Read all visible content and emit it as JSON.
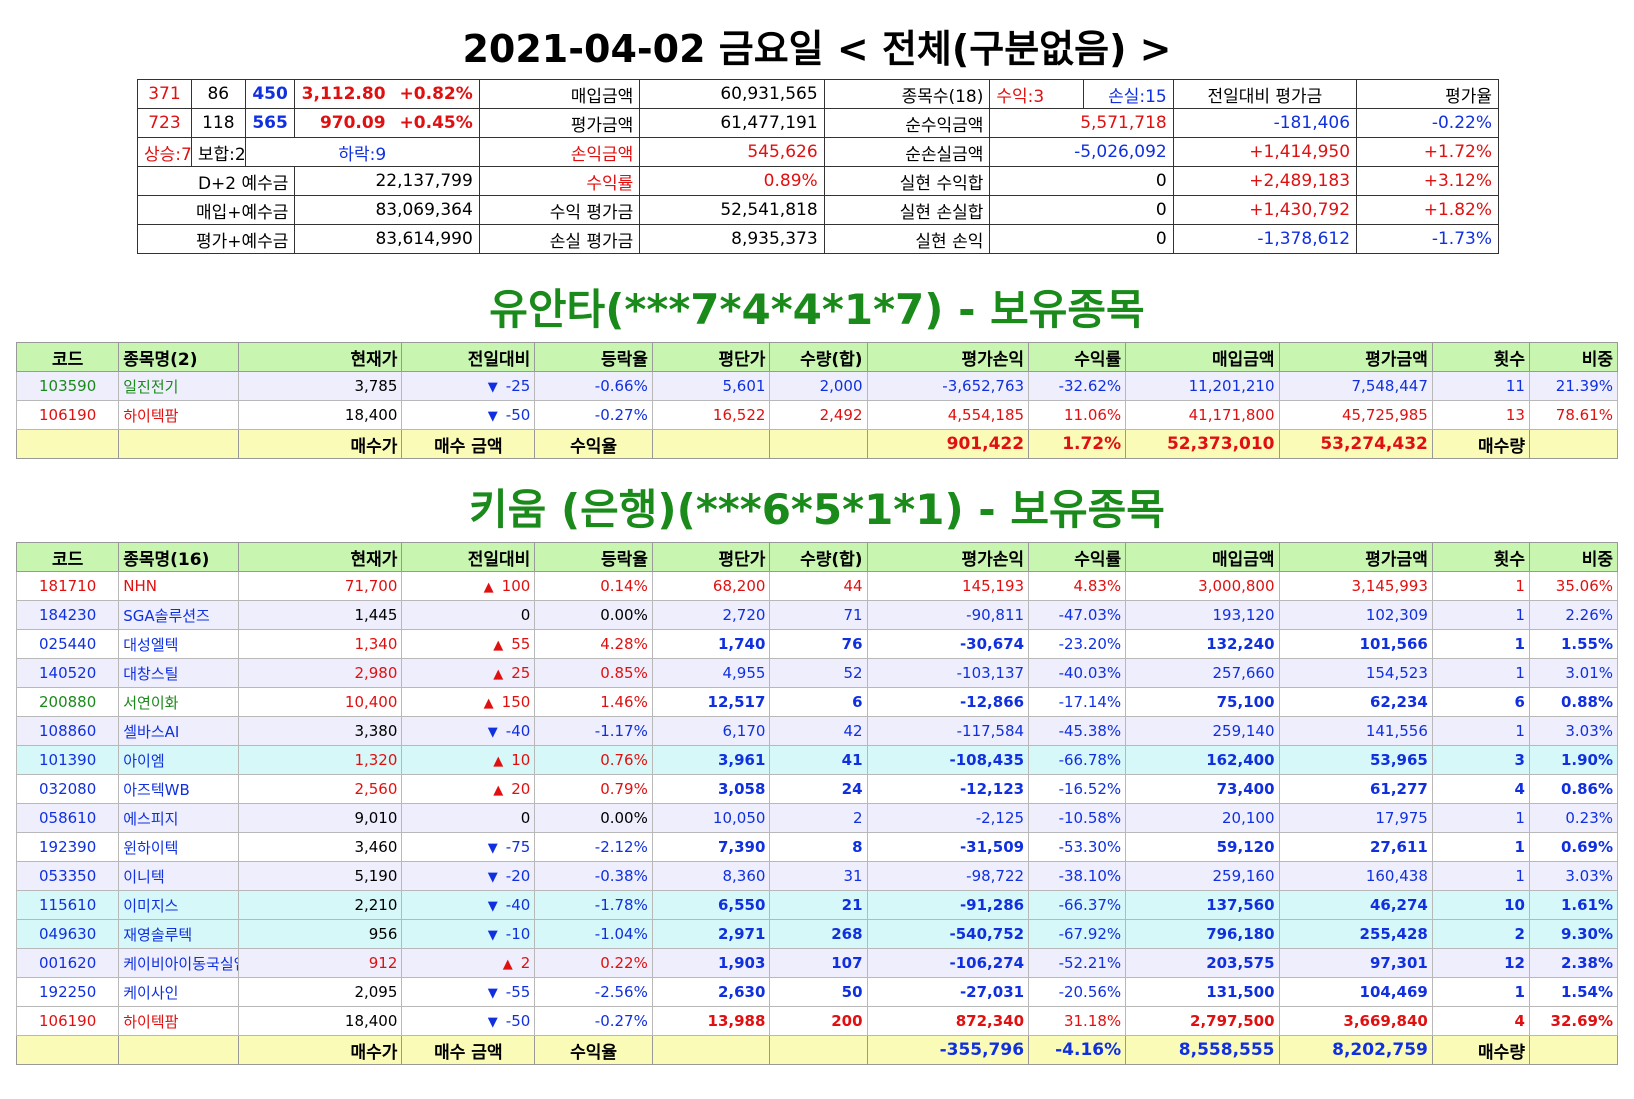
{
  "header": {
    "title": "2021-04-02 금요일 < 전체(구분없음) >"
  },
  "summary": {
    "rows": [
      {
        "a": "371",
        "b": "86",
        "c": "450",
        "idx": "3,112.80",
        "idxpct": "+0.82%",
        "l1": "매입금액",
        "v1": "60,931,565",
        "l2": "종목수(18)",
        "s1": "수익:3",
        "s2": "손실:15",
        "l3": "전일대비 평가금",
        "l4": "평가율"
      },
      {
        "a": "723",
        "b": "118",
        "c": "565",
        "idx": "970.09",
        "idxpct": "+0.45%",
        "l1": "평가금액",
        "v1": "61,477,191",
        "l2": "순수익금액",
        "s1": "5,571,718",
        "l3": "-181,406",
        "l4": "-0.22%"
      },
      {
        "a": "상승:7",
        "b": "보합:2",
        "c": "하락:9",
        "l1": "손익금액",
        "v1": "545,626",
        "l2": "순손실금액",
        "s1": "-5,026,092",
        "l3": "+1,414,950",
        "l4": "+1.72%"
      },
      {
        "k": "D+2 예수금",
        "kv": "22,137,799",
        "l1": "수익률",
        "v1": "0.89%",
        "l2": "실현 수익합",
        "s1": "0",
        "l3": "+2,489,183",
        "l4": "+3.12%"
      },
      {
        "k": "매입+예수금",
        "kv": "83,069,364",
        "l1": "수익 평가금",
        "v1": "52,541,818",
        "l2": "실현 손실합",
        "s1": "0",
        "l3": "+1,430,792",
        "l4": "+1.82%"
      },
      {
        "k": "평가+예수금",
        "kv": "83,614,990",
        "l1": "손실 평가금",
        "v1": "8,935,373",
        "l2": "실현 손익",
        "s1": "0",
        "l3": "-1,378,612",
        "l4": "-1.73%"
      }
    ]
  },
  "columns": [
    "코드",
    "종목명",
    "현재가",
    "전일대비",
    "등락율",
    "평단가",
    "수량(합)",
    "평가손익",
    "수익률",
    "매입금액",
    "평가금액",
    "횟수",
    "비중"
  ],
  "account1": {
    "title": "유안타(***7*4*4*1*7) - 보유종목",
    "name_header": "종목명(2)",
    "rows": [
      {
        "code": "103590",
        "name": "일진전기",
        "price": "3,785",
        "dir": "down",
        "chg": "-25",
        "rate": "-0.66%",
        "avg": "5,601",
        "qty": "2,000",
        "pl": "-3,652,763",
        "ret": "-32.62%",
        "buy": "11,201,210",
        "eval": "7,548,447",
        "cnt": "11",
        "weight": "21.39%",
        "color": "grn",
        "style": "even"
      },
      {
        "code": "106190",
        "name": "하이텍팜",
        "price": "18,400",
        "dir": "down",
        "chg": "-50",
        "rate": "-0.27%",
        "avg": "16,522",
        "qty": "2,492",
        "pl": "4,554,185",
        "ret": "11.06%",
        "buy": "41,171,800",
        "eval": "45,725,985",
        "cnt": "13",
        "weight": "78.61%",
        "color": "red",
        "style": "odd"
      }
    ],
    "footer": {
      "l1": "매수가",
      "l2": "매수 금액",
      "l3": "수익율",
      "pl": "901,422",
      "ret": "1.72%",
      "buy": "52,373,010",
      "eval": "53,274,432",
      "l4": "매수량"
    }
  },
  "account2": {
    "title": "키움 (은행)(***6*5*1*1) - 보유종목",
    "name_header": "종목명(16)",
    "rows": [
      {
        "code": "181710",
        "name": "NHN",
        "price": "71,700",
        "dir": "up",
        "chg": "100",
        "rate": "0.14%",
        "avg": "68,200",
        "qty": "44",
        "pl": "145,193",
        "ret": "4.83%",
        "buy": "3,000,800",
        "eval": "3,145,993",
        "cnt": "1",
        "weight": "35.06%",
        "color": "red",
        "style": "odd",
        "bold": false
      },
      {
        "code": "184230",
        "name": "SGA솔루션즈",
        "price": "1,445",
        "dir": "flat",
        "chg": "0",
        "rate": "0.00%",
        "avg": "2,720",
        "qty": "71",
        "pl": "-90,811",
        "ret": "-47.03%",
        "buy": "193,120",
        "eval": "102,309",
        "cnt": "1",
        "weight": "2.26%",
        "color": "blue",
        "style": "even",
        "bold": false
      },
      {
        "code": "025440",
        "name": "대성엘텍",
        "price": "1,340",
        "dir": "up",
        "chg": "55",
        "rate": "4.28%",
        "avg": "1,740",
        "qty": "76",
        "pl": "-30,674",
        "ret": "-23.20%",
        "buy": "132,240",
        "eval": "101,566",
        "cnt": "1",
        "weight": "1.55%",
        "color": "blue",
        "style": "odd",
        "bold": true
      },
      {
        "code": "140520",
        "name": "대창스틸",
        "price": "2,980",
        "dir": "up",
        "chg": "25",
        "rate": "0.85%",
        "avg": "4,955",
        "qty": "52",
        "pl": "-103,137",
        "ret": "-40.03%",
        "buy": "257,660",
        "eval": "154,523",
        "cnt": "1",
        "weight": "3.01%",
        "color": "blue",
        "style": "even",
        "bold": false
      },
      {
        "code": "200880",
        "name": "서연이화",
        "price": "10,400",
        "dir": "up",
        "chg": "150",
        "rate": "1.46%",
        "avg": "12,517",
        "qty": "6",
        "pl": "-12,866",
        "ret": "-17.14%",
        "buy": "75,100",
        "eval": "62,234",
        "cnt": "6",
        "weight": "0.88%",
        "color": "grn",
        "style": "odd",
        "bold": true
      },
      {
        "code": "108860",
        "name": "셀바스AI",
        "price": "3,380",
        "dir": "down",
        "chg": "-40",
        "rate": "-1.17%",
        "avg": "6,170",
        "qty": "42",
        "pl": "-117,584",
        "ret": "-45.38%",
        "buy": "259,140",
        "eval": "141,556",
        "cnt": "1",
        "weight": "3.03%",
        "color": "blue",
        "style": "even",
        "bold": false
      },
      {
        "code": "101390",
        "name": "아이엠",
        "price": "1,320",
        "dir": "up",
        "chg": "10",
        "rate": "0.76%",
        "avg": "3,961",
        "qty": "41",
        "pl": "-108,435",
        "ret": "-66.78%",
        "buy": "162,400",
        "eval": "53,965",
        "cnt": "3",
        "weight": "1.90%",
        "color": "blue",
        "style": "cyan",
        "bold": true
      },
      {
        "code": "032080",
        "name": "아즈텍WB",
        "price": "2,560",
        "dir": "up",
        "chg": "20",
        "rate": "0.79%",
        "avg": "3,058",
        "qty": "24",
        "pl": "-12,123",
        "ret": "-16.52%",
        "buy": "73,400",
        "eval": "61,277",
        "cnt": "4",
        "weight": "0.86%",
        "color": "blue",
        "style": "odd",
        "bold": true
      },
      {
        "code": "058610",
        "name": "에스피지",
        "price": "9,010",
        "dir": "flat",
        "chg": "0",
        "rate": "0.00%",
        "avg": "10,050",
        "qty": "2",
        "pl": "-2,125",
        "ret": "-10.58%",
        "buy": "20,100",
        "eval": "17,975",
        "cnt": "1",
        "weight": "0.23%",
        "color": "blue",
        "style": "even",
        "bold": false
      },
      {
        "code": "192390",
        "name": "윈하이텍",
        "price": "3,460",
        "dir": "down",
        "chg": "-75",
        "rate": "-2.12%",
        "avg": "7,390",
        "qty": "8",
        "pl": "-31,509",
        "ret": "-53.30%",
        "buy": "59,120",
        "eval": "27,611",
        "cnt": "1",
        "weight": "0.69%",
        "color": "blue",
        "style": "odd",
        "bold": true
      },
      {
        "code": "053350",
        "name": "이니텍",
        "price": "5,190",
        "dir": "down",
        "chg": "-20",
        "rate": "-0.38%",
        "avg": "8,360",
        "qty": "31",
        "pl": "-98,722",
        "ret": "-38.10%",
        "buy": "259,160",
        "eval": "160,438",
        "cnt": "1",
        "weight": "3.03%",
        "color": "blue",
        "style": "even",
        "bold": false
      },
      {
        "code": "115610",
        "name": "이미지스",
        "price": "2,210",
        "dir": "down",
        "chg": "-40",
        "rate": "-1.78%",
        "avg": "6,550",
        "qty": "21",
        "pl": "-91,286",
        "ret": "-66.37%",
        "buy": "137,560",
        "eval": "46,274",
        "cnt": "10",
        "weight": "1.61%",
        "color": "blue",
        "style": "cyan",
        "bold": true
      },
      {
        "code": "049630",
        "name": "재영솔루텍",
        "price": "956",
        "dir": "down",
        "chg": "-10",
        "rate": "-1.04%",
        "avg": "2,971",
        "qty": "268",
        "pl": "-540,752",
        "ret": "-67.92%",
        "buy": "796,180",
        "eval": "255,428",
        "cnt": "2",
        "weight": "9.30%",
        "color": "blue",
        "style": "cyan",
        "bold": true
      },
      {
        "code": "001620",
        "name": "케이비아이동국실업",
        "price": "912",
        "dir": "up",
        "chg": "2",
        "rate": "0.22%",
        "avg": "1,903",
        "qty": "107",
        "pl": "-106,274",
        "ret": "-52.21%",
        "buy": "203,575",
        "eval": "97,301",
        "cnt": "12",
        "weight": "2.38%",
        "color": "blue",
        "style": "even",
        "bold": true
      },
      {
        "code": "192250",
        "name": "케이사인",
        "price": "2,095",
        "dir": "down",
        "chg": "-55",
        "rate": "-2.56%",
        "avg": "2,630",
        "qty": "50",
        "pl": "-27,031",
        "ret": "-20.56%",
        "buy": "131,500",
        "eval": "104,469",
        "cnt": "1",
        "weight": "1.54%",
        "color": "blue",
        "style": "odd",
        "bold": true
      },
      {
        "code": "106190",
        "name": "하이텍팜",
        "price": "18,400",
        "dir": "down",
        "chg": "-50",
        "rate": "-0.27%",
        "avg": "13,988",
        "qty": "200",
        "pl": "872,340",
        "ret": "31.18%",
        "buy": "2,797,500",
        "eval": "3,669,840",
        "cnt": "4",
        "weight": "32.69%",
        "color": "red",
        "style": "odd",
        "bold": true
      }
    ],
    "footer": {
      "l1": "매수가",
      "l2": "매수 금액",
      "l3": "수익율",
      "pl": "-355,796",
      "ret": "-4.16%",
      "buy": "8,558,555",
      "eval": "8,202,759",
      "l4": "매수량"
    }
  },
  "colors": {
    "up": "#e01010",
    "down": "#1030e0",
    "green": "#1a8a1a",
    "header_bg": "#c8f5b0",
    "footer_bg": "#fbfbb8"
  }
}
